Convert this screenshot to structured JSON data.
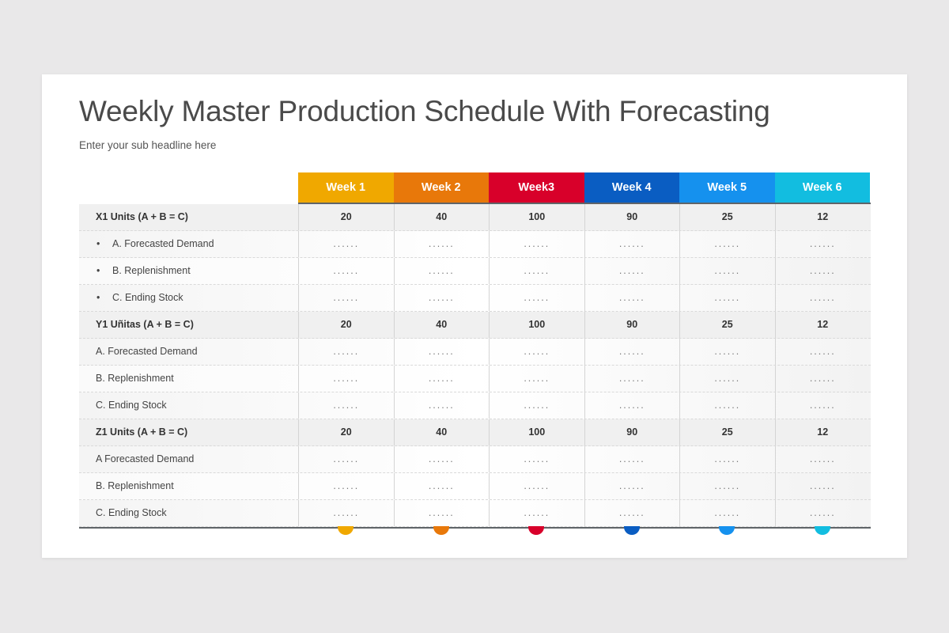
{
  "title": "Weekly Master Production Schedule With Forecasting",
  "subtitle": "Enter your sub headline here",
  "weeks": [
    {
      "label": "Week 1",
      "color": "#f0a800"
    },
    {
      "label": "Week 2",
      "color": "#e8780a"
    },
    {
      "label": "Week3",
      "color": "#d8002a"
    },
    {
      "label": "Week 4",
      "color": "#0a5dc2"
    },
    {
      "label": "Week 5",
      "color": "#1591ee"
    },
    {
      "label": "Week 6",
      "color": "#12bde0"
    }
  ],
  "rows": [
    {
      "label": "X1 Units (A + B = C)",
      "group": true,
      "bullet": false,
      "values": [
        "20",
        "40",
        "100",
        "90",
        "25",
        "12"
      ]
    },
    {
      "label": "A. Forecasted Demand",
      "group": false,
      "bullet": true,
      "values": [
        "......",
        "......",
        "......",
        "......",
        "......",
        "......"
      ]
    },
    {
      "label": "B. Replenishment",
      "group": false,
      "bullet": true,
      "values": [
        "......",
        "......",
        "......",
        "......",
        "......",
        "......"
      ]
    },
    {
      "label": "C. Ending Stock",
      "group": false,
      "bullet": true,
      "values": [
        "......",
        "......",
        "......",
        "......",
        "......",
        "......"
      ]
    },
    {
      "label": "Y1 Uñitas (A + B = C)",
      "group": true,
      "bullet": false,
      "values": [
        "20",
        "40",
        "100",
        "90",
        "25",
        "12"
      ]
    },
    {
      "label": "A. Forecasted Demand",
      "group": false,
      "bullet": false,
      "values": [
        "......",
        "......",
        "......",
        "......",
        "......",
        "......"
      ]
    },
    {
      "label": "B. Replenishment",
      "group": false,
      "bullet": false,
      "values": [
        "......",
        "......",
        "......",
        "......",
        "......",
        "......"
      ]
    },
    {
      "label": "C. Ending Stock",
      "group": false,
      "bullet": false,
      "values": [
        "......",
        "......",
        "......",
        "......",
        "......",
        "......"
      ]
    },
    {
      "label": "Z1 Units (A + B = C)",
      "group": true,
      "bullet": false,
      "values": [
        "20",
        "40",
        "100",
        "90",
        "25",
        "12"
      ]
    },
    {
      "label": "A Forecasted Demand",
      "group": false,
      "bullet": false,
      "values": [
        "......",
        "......",
        "......",
        "......",
        "......",
        "......"
      ]
    },
    {
      "label": "B. Replenishment",
      "group": false,
      "bullet": false,
      "values": [
        "......",
        "......",
        "......",
        "......",
        "......",
        "......"
      ]
    },
    {
      "label": "C. Ending Stock",
      "group": false,
      "bullet": false,
      "values": [
        "......",
        "......",
        "......",
        "......",
        "......",
        "......"
      ]
    }
  ]
}
